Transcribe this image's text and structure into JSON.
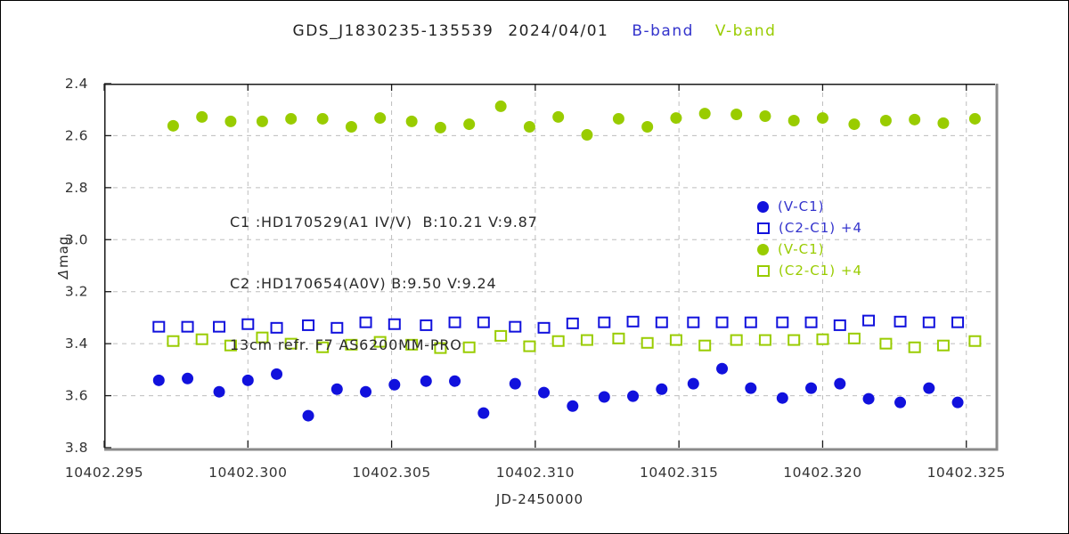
{
  "colors": {
    "b_text": "#3333cc",
    "b_marker": "#1111dd",
    "v_band": "#99cc00",
    "grid": "#bdbdbd",
    "frame_dark": "#1a1a1a",
    "frame_shadow": "#8a8a8a",
    "tick_text": "#333333"
  },
  "chart_data": {
    "type": "scatter",
    "title_parts": {
      "target": "GDS_J1830235-135539",
      "date": "2024/04/01",
      "band_b": "B-band",
      "band_v": "V-band"
    },
    "annotation_lines": [
      "C1 :HD170529(A1 IV/V)  B:10.21 V:9.87",
      "C2 :HD170654(A0V) B:9.50 V:9.24",
      "13cm refr. F7 AS6200MM-PRO"
    ],
    "xlabel": "JD-2450000",
    "ylabel": "⊟mag",
    "ylabel_symbol": "Δ",
    "ylabel_text": "mag",
    "xlim": [
      10402.295,
      10402.326
    ],
    "ylim": [
      2.4,
      3.8
    ],
    "y_axis_inverted_display": "2.4 at top, 3.8 at bottom",
    "grid": true,
    "x_ticks": [
      10402.295,
      10402.3,
      10402.305,
      10402.31,
      10402.315,
      10402.32,
      10402.325
    ],
    "x_tick_labels": [
      "10402.295",
      "10402.300",
      "10402.305",
      "10402.310",
      "10402.315",
      "10402.320",
      "10402.325"
    ],
    "y_ticks": [
      2.4,
      2.6,
      2.8,
      3.0,
      3.2,
      3.4,
      3.6,
      3.8
    ],
    "y_tick_labels": [
      "2.4",
      "2.6",
      "2.8",
      "3.0",
      "3.2",
      "3.4",
      "3.6",
      "3.8"
    ],
    "legend": {
      "items": [
        {
          "label": "(V-C1)",
          "marker": "circle",
          "marker_color": "#1111dd",
          "text_color": "#3333cc"
        },
        {
          "label": "(C2-C1) +4",
          "marker": "square",
          "marker_color": "#1111dd",
          "text_color": "#3333cc"
        },
        {
          "label": "(V-C1)",
          "marker": "circle",
          "marker_color": "#99cc00",
          "text_color": "#99cc00"
        },
        {
          "label": "(C2-C1) +4",
          "marker": "square",
          "marker_color": "#99cc00",
          "text_color": "#99cc00"
        }
      ]
    },
    "series": [
      {
        "name": "B-band (V-C1)",
        "marker": "circle",
        "filled": true,
        "color": "#1111dd",
        "x": [
          10402.2969,
          10402.2979,
          10402.299,
          10402.3,
          10402.301,
          10402.3021,
          10402.3031,
          10402.3041,
          10402.3051,
          10402.3062,
          10402.3072,
          10402.3082,
          10402.3093,
          10402.3103,
          10402.3113,
          10402.3124,
          10402.3134,
          10402.3144,
          10402.3155,
          10402.3165,
          10402.3175,
          10402.3186,
          10402.3196,
          10402.3206,
          10402.3216,
          10402.3227,
          10402.3237,
          10402.3247
        ],
        "y": [
          3.541,
          3.534,
          3.585,
          3.541,
          3.517,
          3.677,
          3.575,
          3.585,
          3.558,
          3.544,
          3.544,
          3.667,
          3.554,
          3.588,
          3.64,
          3.605,
          3.602,
          3.575,
          3.554,
          3.496,
          3.571,
          3.609,
          3.571,
          3.554,
          3.612,
          3.626,
          3.571,
          3.626
        ]
      },
      {
        "name": "B-band (C2-C1) +4",
        "marker": "square",
        "filled": false,
        "color": "#1111dd",
        "x": [
          10402.2969,
          10402.2979,
          10402.299,
          10402.3,
          10402.301,
          10402.3021,
          10402.3031,
          10402.3041,
          10402.3051,
          10402.3062,
          10402.3072,
          10402.3082,
          10402.3093,
          10402.3103,
          10402.3113,
          10402.3124,
          10402.3134,
          10402.3144,
          10402.3155,
          10402.3165,
          10402.3175,
          10402.3186,
          10402.3196,
          10402.3206,
          10402.3216,
          10402.3227,
          10402.3237,
          10402.3247
        ],
        "y": [
          3.335,
          3.335,
          3.335,
          3.325,
          3.339,
          3.329,
          3.339,
          3.318,
          3.325,
          3.329,
          3.318,
          3.318,
          3.335,
          3.339,
          3.322,
          3.318,
          3.315,
          3.318,
          3.318,
          3.318,
          3.318,
          3.318,
          3.318,
          3.329,
          3.311,
          3.315,
          3.318,
          3.318
        ]
      },
      {
        "name": "V-band (V-C1)",
        "marker": "circle",
        "filled": true,
        "color": "#99cc00",
        "x": [
          10402.2974,
          10402.2984,
          10402.2994,
          10402.3005,
          10402.3015,
          10402.3026,
          10402.3036,
          10402.3046,
          10402.3057,
          10402.3067,
          10402.3077,
          10402.3088,
          10402.3098,
          10402.3108,
          10402.3118,
          10402.3129,
          10402.3139,
          10402.3149,
          10402.3159,
          10402.317,
          10402.318,
          10402.319,
          10402.32,
          10402.3211,
          10402.3222,
          10402.3232,
          10402.3242,
          10402.3253
        ],
        "y": [
          2.562,
          2.528,
          2.545,
          2.545,
          2.535,
          2.535,
          2.566,
          2.532,
          2.545,
          2.569,
          2.556,
          2.487,
          2.566,
          2.528,
          2.597,
          2.535,
          2.566,
          2.532,
          2.515,
          2.518,
          2.525,
          2.542,
          2.532,
          2.556,
          2.542,
          2.538,
          2.552,
          2.535
        ]
      },
      {
        "name": "V-band (C2-C1) +4",
        "marker": "square",
        "filled": false,
        "color": "#99cc00",
        "x": [
          10402.2974,
          10402.2984,
          10402.2994,
          10402.3005,
          10402.3015,
          10402.3026,
          10402.3036,
          10402.3046,
          10402.3057,
          10402.3067,
          10402.3077,
          10402.3088,
          10402.3098,
          10402.3108,
          10402.3118,
          10402.3129,
          10402.3139,
          10402.3149,
          10402.3159,
          10402.317,
          10402.318,
          10402.319,
          10402.32,
          10402.3211,
          10402.3222,
          10402.3232,
          10402.3242,
          10402.3253
        ],
        "y": [
          3.39,
          3.383,
          3.407,
          3.376,
          3.4,
          3.414,
          3.404,
          3.393,
          3.404,
          3.417,
          3.414,
          3.37,
          3.41,
          3.39,
          3.386,
          3.38,
          3.397,
          3.386,
          3.407,
          3.386,
          3.386,
          3.386,
          3.383,
          3.38,
          3.4,
          3.414,
          3.407,
          3.39
        ]
      }
    ]
  }
}
